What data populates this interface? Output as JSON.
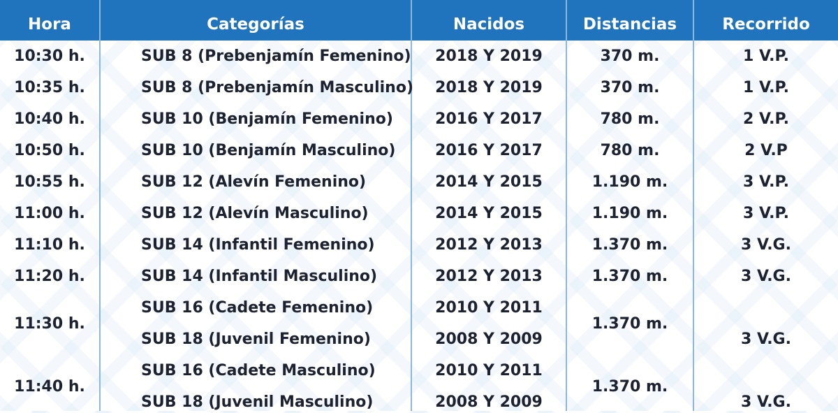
{
  "header": {
    "hora": "Hora",
    "categorias": "Categorías",
    "nacidos": "Nacidos",
    "distancias": "Distancias",
    "recorrido": "Recorrido"
  },
  "rows": [
    {
      "hora": "10:30 h.",
      "categoria": "SUB 8 (Prebenjamín Femenino)",
      "nacidos": "2018 Y 2019",
      "distancia": "370 m.",
      "recorrido": "1 V.P."
    },
    {
      "hora": "10:35 h.",
      "categoria": "SUB 8 (Prebenjamín Masculino)",
      "nacidos": "2018 Y 2019",
      "distancia": "370 m.",
      "recorrido": "1 V.P."
    },
    {
      "hora": "10:40 h.",
      "categoria": "SUB 10 (Benjamín Femenino)",
      "nacidos": "2016 Y 2017",
      "distancia": "780 m.",
      "recorrido": "2 V.P."
    },
    {
      "hora": "10:50 h.",
      "categoria": "SUB 10 (Benjamín Masculino)",
      "nacidos": "2016 Y 2017",
      "distancia": "780 m.",
      "recorrido": "2 V.P"
    },
    {
      "hora": "10:55 h.",
      "categoria": "SUB 12 (Alevín Femenino)",
      "nacidos": "2014 Y 2015",
      "distancia": "1.190 m.",
      "recorrido": "3 V.P."
    },
    {
      "hora": "11:00 h.",
      "categoria": "SUB 12 (Alevín Masculino)",
      "nacidos": "2014 Y 2015",
      "distancia": "1.190 m.",
      "recorrido": "3 V.P."
    },
    {
      "hora": "11:10 h.",
      "categoria": "SUB 14 (Infantil Femenino)",
      "nacidos": "2012 Y 2013",
      "distancia": "1.370 m.",
      "recorrido": "3 V.G."
    },
    {
      "hora": "11:20 h.",
      "categoria": "SUB 14 (Infantil Masculino)",
      "nacidos": "2012 Y 2013",
      "distancia": "1.370 m.",
      "recorrido": "3 V.G."
    }
  ],
  "groups": [
    {
      "hora": "11:30 h.",
      "categoria_1": "SUB 16 (Cadete Femenino)",
      "nacidos_1": "2010 Y 2011",
      "categoria_2": "SUB 18 (Juvenil Femenino)",
      "nacidos_2": "2008 Y 2009",
      "distancia": "1.370 m.",
      "recorrido": "3 V.G."
    },
    {
      "hora": "11:40 h.",
      "categoria_1": "SUB 16 (Cadete Masculino)",
      "nacidos_1": "2010 Y 2011",
      "categoria_2": "SUB 18 (Juvenil Masculino)",
      "nacidos_2": "2008 Y 2009",
      "distancia": "1.370 m.",
      "recorrido": "3 V.G."
    }
  ]
}
